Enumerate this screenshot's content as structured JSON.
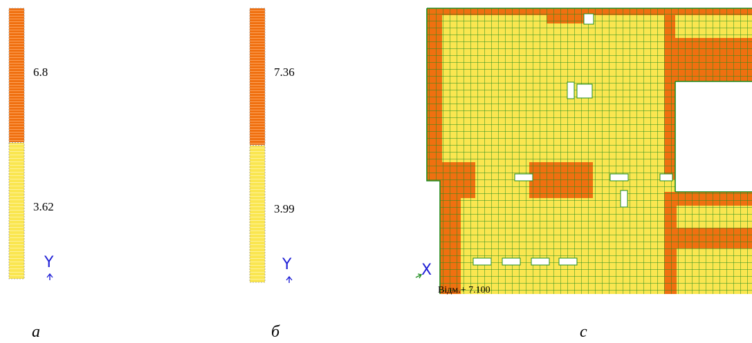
{
  "colors": {
    "orange": "#f07010",
    "yellow": "#fae650",
    "mesh": "#1e8c1e",
    "axis": "#1f1fd6"
  },
  "panel_a": {
    "upper_value": "6.8",
    "lower_value": "3.62",
    "axis_label": "Y",
    "caption": "а"
  },
  "panel_b": {
    "upper_value": "7.36",
    "lower_value": "3.99",
    "axis_label": "Y",
    "caption": "б"
  },
  "panel_c": {
    "axis_label": "X",
    "elevation_label": "Відм.+ 7.100",
    "caption": "с"
  }
}
